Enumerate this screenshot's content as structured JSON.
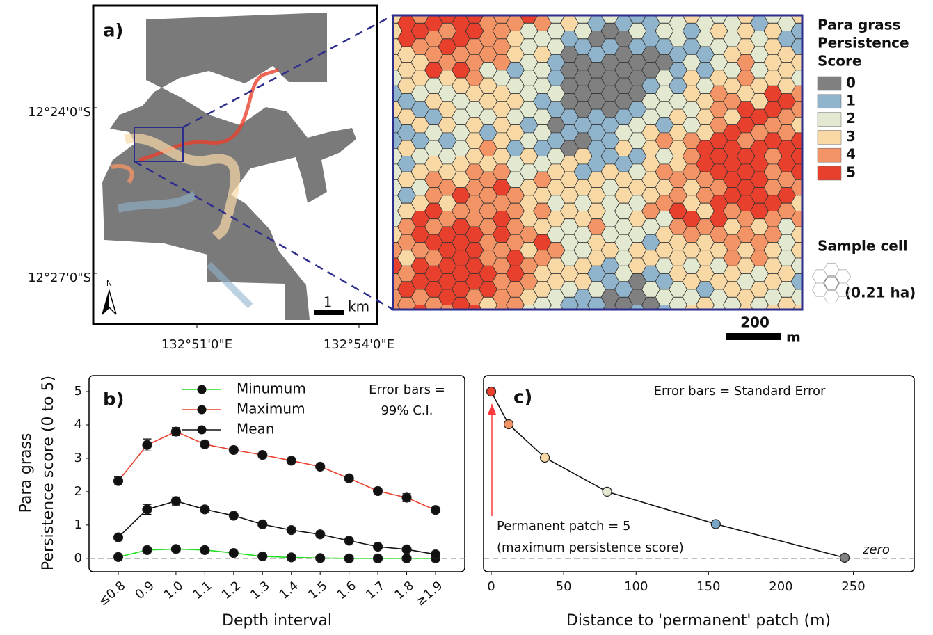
{
  "map": {
    "panel_label": "a)",
    "lat_labels": [
      "12°24'0\"S",
      "12°27'0\"S"
    ],
    "lon_labels": [
      "132°51'0\"E",
      "132°54'0\"E"
    ],
    "north": "N",
    "scale_label": "1",
    "scale_unit": "km"
  },
  "inset": {
    "scale_label": "200",
    "scale_unit": "m"
  },
  "legend": {
    "title_lines": [
      "Para grass",
      "Persistence",
      "Score"
    ],
    "items": [
      {
        "label": "0",
        "color": "#808080"
      },
      {
        "label": "1",
        "color": "#8fb4cc"
      },
      {
        "label": "2",
        "color": "#e2e9d0"
      },
      {
        "label": "3",
        "color": "#f8d9a6"
      },
      {
        "label": "4",
        "color": "#f39466"
      },
      {
        "label": "5",
        "color": "#e8402c"
      }
    ],
    "sample_title": "Sample cell",
    "sample_area": "(0.21 ha)"
  },
  "chart_data": [
    {
      "type": "line",
      "panel_label": "b)",
      "y_label_lines": [
        "Para grass",
        "Persistence score (0 to 5)"
      ],
      "x_label": "Depth interval",
      "annotation_lines": [
        "Error bars =",
        "99% C.I."
      ],
      "categories": [
        "≤0.8",
        "0.9",
        "1.0",
        "1.1",
        "1.2",
        "1.3",
        "1.4",
        "1.5",
        "1.6",
        "1.7",
        "1.8",
        "≥1.9"
      ],
      "series": [
        {
          "name": "Minumum",
          "color": "#22dd22",
          "marker_color": "#111111",
          "values": [
            0.04,
            0.25,
            0.28,
            0.25,
            0.16,
            0.06,
            0.03,
            0.01,
            0.0,
            0.0,
            0.0,
            0.0
          ],
          "errors": [
            0.03,
            0.05,
            0.05,
            0.04,
            0.03,
            0.02,
            0.02,
            0.01,
            0.01,
            0.01,
            0.01,
            0.01
          ]
        },
        {
          "name": "Maximum",
          "color": "#e8402c",
          "marker_color": "#111111",
          "values": [
            2.32,
            3.4,
            3.8,
            3.42,
            3.25,
            3.1,
            2.93,
            2.75,
            2.4,
            2.02,
            1.82,
            1.45
          ],
          "errors": [
            0.12,
            0.18,
            0.12,
            0.08,
            0.06,
            0.05,
            0.05,
            0.05,
            0.05,
            0.08,
            0.12,
            0.06
          ]
        },
        {
          "name": "Mean",
          "color": "#111111",
          "marker_color": "#111111",
          "values": [
            0.63,
            1.47,
            1.72,
            1.47,
            1.28,
            1.02,
            0.85,
            0.72,
            0.53,
            0.35,
            0.27,
            0.12
          ],
          "errors": [
            0.06,
            0.15,
            0.12,
            0.06,
            0.06,
            0.05,
            0.04,
            0.04,
            0.04,
            0.05,
            0.07,
            0.05
          ]
        }
      ],
      "ylim": [
        -0.4,
        5.48
      ],
      "yticks": [
        0,
        1,
        2,
        3,
        4,
        5
      ],
      "hline": 0
    },
    {
      "type": "line",
      "panel_label": "c)",
      "x_label": "Distance to 'permanent' patch (m)",
      "annotation": "Error bars = Standard Error",
      "arrow_lines": [
        "Permanent patch =  5",
        "(maximum persistence score)"
      ],
      "hline_label": "zero",
      "x": [
        0,
        12,
        37,
        80,
        155,
        244
      ],
      "values": [
        5.0,
        4.02,
        3.02,
        2.0,
        1.03,
        0.02
      ],
      "errors": [
        0.05,
        0.05,
        0.05,
        0.05,
        0.05,
        0.03
      ],
      "color": "#111111",
      "point_colors": [
        "#e8402c",
        "#f39466",
        "#f8d9a6",
        "#e2e9d0",
        "#7aa6c8",
        "#808080"
      ],
      "xlim": [
        -5.3,
        292
      ],
      "xticks": [
        0,
        50,
        100,
        150,
        200,
        250
      ],
      "ylim": [
        -0.4,
        5.48
      ],
      "hline": 0
    }
  ]
}
